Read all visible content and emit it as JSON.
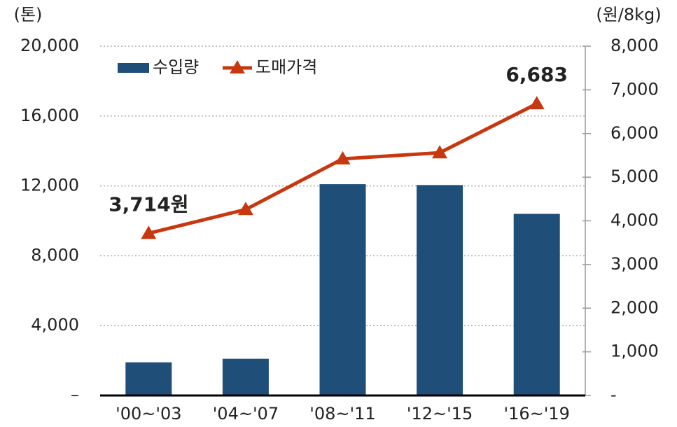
{
  "chart_data": {
    "type": "bar",
    "y_label": "(톤)",
    "y2_label": "(원/8kg)",
    "categories": [
      "'00~'03",
      "'04~'07",
      "'08~'11",
      "'12~'15",
      "'16~'19"
    ],
    "series": [
      {
        "name": "수입량",
        "color": "#1f4e79",
        "type": "bar",
        "values": [
          1900,
          2100,
          12100,
          12050,
          10400
        ]
      },
      {
        "name": "도매가격",
        "color": "#c8380e",
        "type": "line",
        "axis": "y2",
        "values": [
          3714,
          4260,
          5420,
          5560,
          6683
        ],
        "value_labels": [
          "3,714원",
          null,
          null,
          null,
          "6,683"
        ]
      }
    ],
    "ylim": [
      0,
      20000
    ],
    "yticks": [
      {
        "value": 0,
        "label": "–"
      },
      {
        "value": 4000,
        "label": "4,000"
      },
      {
        "value": 8000,
        "label": "8,000"
      },
      {
        "value": 12000,
        "label": "12,000"
      },
      {
        "value": 16000,
        "label": "16,000"
      },
      {
        "value": 20000,
        "label": "20,000"
      }
    ],
    "y2lim": [
      0,
      8000
    ],
    "y2ticks": [
      {
        "value": 0,
        "label": "-"
      },
      {
        "value": 1000,
        "label": "1,000"
      },
      {
        "value": 2000,
        "label": "2,000"
      },
      {
        "value": 3000,
        "label": "3,000"
      },
      {
        "value": 4000,
        "label": "4,000"
      },
      {
        "value": 5000,
        "label": "5,000"
      },
      {
        "value": 6000,
        "label": "6,000"
      },
      {
        "value": 7000,
        "label": "7,000"
      },
      {
        "value": 8000,
        "label": "8,000"
      }
    ],
    "grid": true,
    "legend": "top-left"
  }
}
